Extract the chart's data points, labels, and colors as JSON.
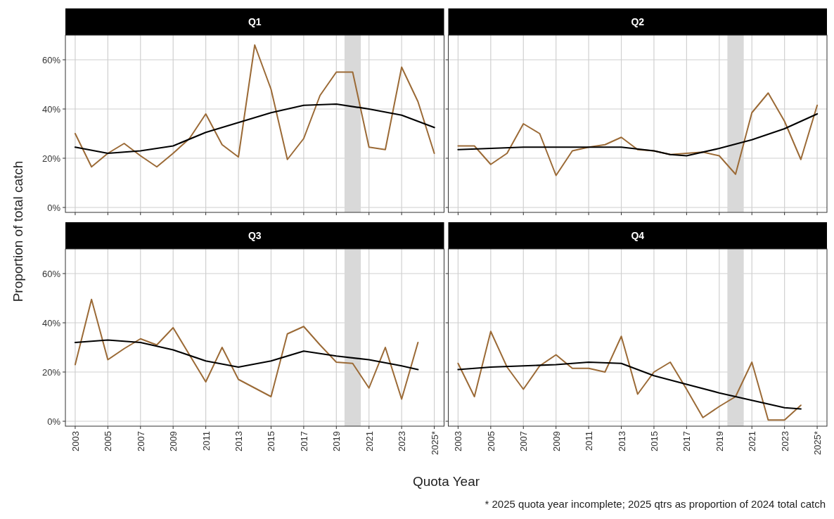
{
  "chart_data": [
    {
      "type": "line",
      "title": "Q1",
      "ylabel": "Proportion of total catch",
      "xlim": [
        2002.4,
        2025.6
      ],
      "ylim": [
        -2,
        70
      ],
      "xticks": [
        2003,
        2005,
        2007,
        2009,
        2011,
        2013,
        2015,
        2017,
        2019,
        2021,
        2023,
        2025
      ],
      "yticks": [
        {
          "value": 0,
          "label": "0%"
        },
        {
          "value": 20,
          "label": "20%"
        },
        {
          "value": 40,
          "label": "40%"
        },
        {
          "value": 60,
          "label": "60%"
        }
      ],
      "grid": true,
      "tick_labels": "y",
      "bands": [
        {
          "axis": "x",
          "from": 2019.5,
          "to": 2020.5,
          "color": "#d9d9d9"
        }
      ],
      "series": [
        {
          "color": "#9b6a36",
          "x": [
            2003,
            2004,
            2005,
            2006,
            2007,
            2008,
            2009,
            2010,
            2011,
            2012,
            2013,
            2014,
            2015,
            2016,
            2017,
            2018,
            2019,
            2020,
            2021,
            2022,
            2023,
            2024,
            2025
          ],
          "values": [
            30,
            16.5,
            22,
            26,
            21,
            16.5,
            22,
            28,
            38,
            25.5,
            20.5,
            66,
            48,
            19.5,
            28,
            45.5,
            55,
            55,
            24.5,
            23.5,
            57,
            43,
            22
          ]
        },
        {
          "color": "#000000",
          "x": [
            2003,
            2005,
            2007,
            2009,
            2011,
            2013,
            2015,
            2017,
            2019,
            2021,
            2023,
            2025
          ],
          "values": [
            24.5,
            22,
            23,
            25,
            30.5,
            34.5,
            38.5,
            41.5,
            42,
            40,
            37.5,
            32.5
          ]
        }
      ]
    },
    {
      "type": "line",
      "title": "Q2",
      "xlim": [
        2002.4,
        2025.6
      ],
      "ylim": [
        -2,
        70
      ],
      "xticks": [
        2003,
        2005,
        2007,
        2009,
        2011,
        2013,
        2015,
        2017,
        2019,
        2021,
        2023,
        2025
      ],
      "yticks": [
        0,
        20,
        40,
        60
      ],
      "grid": true,
      "tick_labels": false,
      "bands": [
        {
          "axis": "x",
          "from": 2019.5,
          "to": 2020.5,
          "color": "#d9d9d9"
        }
      ],
      "series": [
        {
          "color": "#9b6a36",
          "x": [
            2003,
            2004,
            2005,
            2006,
            2007,
            2008,
            2009,
            2010,
            2011,
            2012,
            2013,
            2014,
            2015,
            2016,
            2017,
            2018,
            2019,
            2020,
            2021,
            2022,
            2023,
            2024,
            2025
          ],
          "values": [
            25,
            25,
            17.5,
            22,
            34,
            30,
            13,
            23,
            24.5,
            25.5,
            28.5,
            23.5,
            23,
            21.5,
            22,
            22.5,
            21,
            13.5,
            38.5,
            46.5,
            35,
            19.5,
            41.5
          ]
        },
        {
          "color": "#000000",
          "x": [
            2003,
            2005,
            2007,
            2009,
            2011,
            2013,
            2015,
            2016,
            2017,
            2019,
            2021,
            2023,
            2025
          ],
          "values": [
            23.5,
            24,
            24.5,
            24.5,
            24.5,
            24.5,
            23,
            21.5,
            21,
            24,
            27.5,
            32,
            38
          ]
        }
      ]
    },
    {
      "type": "line",
      "title": "Q3",
      "xlabel": "Quota Year",
      "xlim": [
        2002.4,
        2025.6
      ],
      "ylim": [
        -2,
        70
      ],
      "xticks": [
        2003,
        2005,
        2007,
        2009,
        2011,
        2013,
        2015,
        2017,
        2019,
        2021,
        2023,
        {
          "value": 2025,
          "label": "2025*"
        }
      ],
      "yticks": [
        {
          "value": 0,
          "label": "0%"
        },
        {
          "value": 20,
          "label": "20%"
        },
        {
          "value": 40,
          "label": "40%"
        },
        {
          "value": 60,
          "label": "60%"
        }
      ],
      "grid": true,
      "bands": [
        {
          "axis": "x",
          "from": 2019.5,
          "to": 2020.5,
          "color": "#d9d9d9"
        }
      ],
      "series": [
        {
          "color": "#9b6a36",
          "x": [
            2003,
            2004,
            2005,
            2006,
            2007,
            2008,
            2009,
            2010,
            2011,
            2012,
            2013,
            2014,
            2015,
            2016,
            2017,
            2018,
            2019,
            2020,
            2021,
            2022,
            2023,
            2024
          ],
          "values": [
            23,
            49.5,
            25,
            29.5,
            33.5,
            31,
            38,
            27,
            16,
            30,
            17,
            13.5,
            10,
            35.5,
            38.5,
            31,
            24,
            23.5,
            13.5,
            30,
            9,
            32
          ]
        },
        {
          "color": "#000000",
          "x": [
            2003,
            2005,
            2007,
            2009,
            2011,
            2013,
            2015,
            2017,
            2019,
            2021,
            2023,
            2024
          ],
          "values": [
            32,
            33,
            32,
            29,
            24.5,
            22,
            24.5,
            28.5,
            26.5,
            25,
            22.5,
            21
          ]
        }
      ]
    },
    {
      "type": "line",
      "title": "Q4",
      "xlim": [
        2002.4,
        2025.6
      ],
      "ylim": [
        -2,
        70
      ],
      "xticks": [
        2003,
        2005,
        2007,
        2009,
        2011,
        2013,
        2015,
        2017,
        2019,
        2021,
        2023,
        {
          "value": 2025,
          "label": "2025*"
        }
      ],
      "yticks": [
        0,
        20,
        40,
        60
      ],
      "grid": true,
      "tick_labels": "x",
      "annotations": [
        "* 2025 quota year incomplete; 2025 qtrs as proportion of 2024 total catch"
      ],
      "bands": [
        {
          "axis": "x",
          "from": 2019.5,
          "to": 2020.5,
          "color": "#d9d9d9"
        }
      ],
      "series": [
        {
          "color": "#9b6a36",
          "x": [
            2003,
            2004,
            2005,
            2006,
            2007,
            2008,
            2009,
            2010,
            2011,
            2012,
            2013,
            2014,
            2015,
            2016,
            2017,
            2018,
            2019,
            2020,
            2021,
            2022,
            2023,
            2024
          ],
          "values": [
            23.5,
            10,
            36.5,
            22,
            13,
            22.5,
            27,
            21.5,
            21.5,
            20,
            34.5,
            11,
            20,
            24,
            13,
            1.5,
            6,
            10,
            24,
            0.5,
            0.5,
            6.5
          ]
        },
        {
          "color": "#000000",
          "x": [
            2003,
            2005,
            2007,
            2009,
            2011,
            2013,
            2015,
            2017,
            2019,
            2021,
            2023,
            2024
          ],
          "values": [
            21,
            22,
            22.5,
            23,
            24,
            23.5,
            18.5,
            15,
            11.5,
            8.5,
            5.5,
            5
          ]
        }
      ]
    }
  ]
}
